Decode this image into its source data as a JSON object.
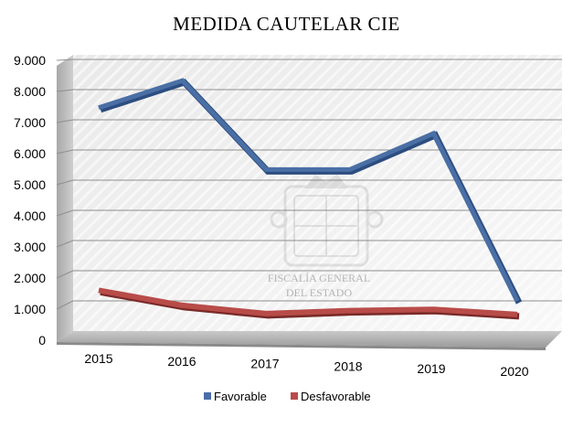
{
  "chart_data": {
    "type": "line",
    "title": "MEDIDA CAUTELAR CIE",
    "categories": [
      "2015",
      "2016",
      "2017",
      "2018",
      "2019",
      "2020"
    ],
    "y_tick_labels": [
      "0",
      "1.000",
      "2.000",
      "3.000",
      "4.000",
      "5.000",
      "6.000",
      "7.000",
      "8.000",
      "9.000"
    ],
    "ylim": [
      0,
      9000
    ],
    "grid": true,
    "legend_position": "bottom",
    "series": [
      {
        "name": "Favorable",
        "values": [
          7400,
          8300,
          5350,
          5350,
          6550,
          1000
        ],
        "color": "#4a6fa5"
      },
      {
        "name": "Desfavorable",
        "values": [
          1350,
          850,
          580,
          680,
          720,
          550
        ],
        "color": "#b84c49"
      }
    ],
    "watermark": {
      "lines": [
        "FISCALÍA GENERAL",
        "DEL ESTADO"
      ]
    }
  }
}
